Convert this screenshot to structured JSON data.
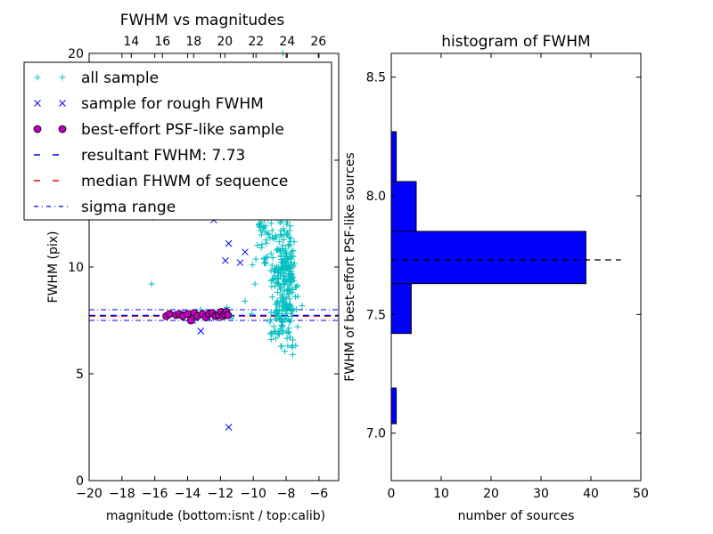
{
  "chart_data": [
    {
      "type": "scatter",
      "title": "FWHM vs magnitudes",
      "xlabel": "magnitude (bottom:isnt / top:calib)",
      "ylabel": "FWHM (pix)",
      "xlim": [
        -20,
        -4.8
      ],
      "ylim": [
        0,
        20
      ],
      "top_xlim": [
        11.3,
        27.3
      ],
      "x_ticks": [
        -20,
        -18,
        -16,
        -14,
        -12,
        -10,
        -8,
        -6
      ],
      "x_tick_labels": [
        "−20",
        "−18",
        "−16",
        "−14",
        "−12",
        "−10",
        "−8",
        "−6"
      ],
      "y_ticks": [
        0,
        5,
        10,
        15,
        20
      ],
      "y_tick_labels": [
        "0",
        "5",
        "10",
        "15",
        "20"
      ],
      "top_ticks": [
        14,
        16,
        18,
        20,
        22,
        24,
        26
      ],
      "top_tick_labels": [
        "14",
        "16",
        "18",
        "20",
        "22",
        "24",
        "26"
      ],
      "legend": {
        "placement": "upper-left",
        "entries": [
          {
            "label": "all sample",
            "marker": "plus",
            "color": "#00bfbf"
          },
          {
            "label": "sample for rough FWHM",
            "marker": "x",
            "color": "#0000ff"
          },
          {
            "label": "best-effort PSF-like sample",
            "marker": "circle",
            "color": "#bf00bf"
          },
          {
            "label": "resultant FWHM: 7.73",
            "marker": "dashed-line",
            "color": "#0000ff"
          },
          {
            "label": "median FHWM of sequence",
            "marker": "dashed-line",
            "color": "#ff0000"
          },
          {
            "label": "sigma range",
            "marker": "dashdot-line",
            "color": "#0000ff"
          }
        ]
      },
      "lines": {
        "resultant_fwhm": 7.73,
        "median_fwhm": 7.7,
        "sigma_upper": 8.0,
        "sigma_lower": 7.5
      },
      "series": [
        {
          "name": "all sample",
          "marker": "plus",
          "color": "#00bfbf",
          "cluster": true,
          "points": [
            [
              -16.2,
              9.2
            ],
            [
              -16.1,
              12.3
            ],
            [
              -13.2,
              8.0
            ],
            [
              -12.9,
              7.6
            ],
            [
              -12.4,
              7.9
            ],
            [
              -11.6,
              8.1
            ],
            [
              -11.3,
              7.6
            ],
            [
              -10.5,
              8.4
            ],
            [
              -10.1,
              7.8
            ],
            [
              -9.9,
              9.2
            ]
          ]
        },
        {
          "name": "sample for rough FWHM",
          "marker": "x",
          "color": "#0000ff",
          "points": [
            [
              -14.1,
              7.8
            ],
            [
              -13.7,
              7.5
            ],
            [
              -13.2,
              7.0
            ],
            [
              -12.7,
              7.6
            ],
            [
              -12.4,
              12.2
            ],
            [
              -12.3,
              7.7
            ],
            [
              -11.7,
              7.9
            ],
            [
              -11.5,
              11.1
            ],
            [
              -11.7,
              10.3
            ],
            [
              -11.5,
              2.5
            ],
            [
              -10.8,
              10.2
            ],
            [
              -10.5,
              10.7
            ],
            [
              -12.1,
              7.8
            ]
          ]
        },
        {
          "name": "best-effort PSF-like sample",
          "marker": "circle",
          "color": "#bf00bf",
          "points": [
            [
              -15.3,
              7.7
            ],
            [
              -15.1,
              7.8
            ],
            [
              -14.7,
              7.75
            ],
            [
              -14.5,
              7.8
            ],
            [
              -14.3,
              7.7
            ],
            [
              -14.0,
              7.8
            ],
            [
              -13.8,
              7.5
            ],
            [
              -13.6,
              7.85
            ],
            [
              -13.4,
              7.7
            ],
            [
              -13.1,
              7.8
            ],
            [
              -12.9,
              7.65
            ],
            [
              -12.7,
              7.8
            ],
            [
              -12.5,
              7.85
            ],
            [
              -12.3,
              7.7
            ],
            [
              -12.1,
              7.75
            ],
            [
              -11.95,
              7.9
            ],
            [
              -11.85,
              7.7
            ],
            [
              -11.75,
              7.8
            ],
            [
              -11.65,
              7.9
            ],
            [
              -11.55,
              7.75
            ]
          ]
        }
      ]
    },
    {
      "type": "bar",
      "orientation": "horizontal",
      "title": "histogram of FWHM",
      "xlabel": "number of sources",
      "ylabel": "FWHM of best-effort PSF-like sources",
      "xlim": [
        0,
        50
      ],
      "ylim": [
        6.8,
        8.6
      ],
      "x_ticks": [
        0,
        10,
        20,
        30,
        40,
        50
      ],
      "x_tick_labels": [
        "0",
        "10",
        "20",
        "30",
        "40",
        "50"
      ],
      "y_ticks": [
        7.0,
        7.5,
        8.0,
        8.5
      ],
      "y_tick_labels": [
        "7.0",
        "7.5",
        "8.0",
        "8.5"
      ],
      "color": "#0000ff",
      "bins": [
        {
          "low": 7.04,
          "high": 7.19,
          "count": 1
        },
        {
          "low": 7.42,
          "high": 7.63,
          "count": 4
        },
        {
          "low": 7.63,
          "high": 7.85,
          "count": 39
        },
        {
          "low": 7.85,
          "high": 8.06,
          "count": 5
        },
        {
          "low": 8.06,
          "high": 8.27,
          "count": 1
        }
      ],
      "reference_line": 7.73
    }
  ]
}
